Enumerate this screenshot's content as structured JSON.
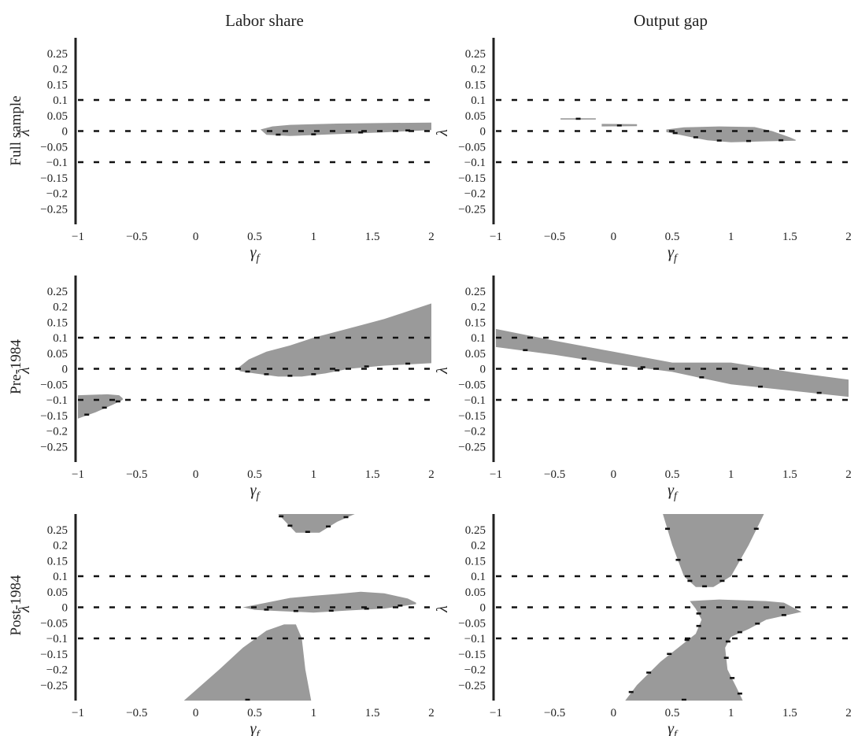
{
  "figure": {
    "column_titles": [
      "Labor share",
      "Output gap"
    ],
    "row_titles": [
      "Full sample",
      "Pre-1984",
      "Post-1984"
    ]
  },
  "colors": {
    "region": "#9a9a9a",
    "reference_lines": "#111111",
    "axes": "#222222"
  },
  "chart_data": [
    {
      "type": "area",
      "row": 0,
      "column": 0,
      "row_title": "Full sample",
      "column_title": "Labor share",
      "xlabel": "γf",
      "ylabel": "λ",
      "xlim": [
        -1,
        2
      ],
      "ylim": [
        -0.3,
        0.3
      ],
      "xticks": [
        "−1",
        "−0.5",
        "0",
        "0.5",
        "1",
        "1.5",
        "2"
      ],
      "yticks": [
        "0.25",
        "0.2",
        "0.15",
        "0.1",
        "0.05",
        "0",
        "−0.05",
        "−0.1",
        "−0.15",
        "−0.2",
        "−0.25"
      ],
      "reference_lines": [
        0.1,
        0,
        -0.1
      ],
      "grid": false,
      "legend": "none",
      "regions": [
        {
          "upper": [
            [
              0.55,
              0.005
            ],
            [
              0.65,
              0.015
            ],
            [
              0.8,
              0.02
            ],
            [
              1.2,
              0.024
            ],
            [
              1.6,
              0.026
            ],
            [
              2.0,
              0.027
            ]
          ],
          "lower": [
            [
              2.0,
              0.003
            ],
            [
              1.6,
              -0.004
            ],
            [
              1.2,
              -0.01
            ],
            [
              0.8,
              -0.016
            ],
            [
              0.6,
              -0.012
            ]
          ]
        }
      ]
    },
    {
      "type": "area",
      "row": 0,
      "column": 1,
      "row_title": "Full sample",
      "column_title": "Output gap",
      "xlabel": "γf",
      "ylabel": "λ",
      "xlim": [
        -1,
        2
      ],
      "ylim": [
        -0.3,
        0.3
      ],
      "xticks": [
        "−1",
        "−0.5",
        "0",
        "0.5",
        "1",
        "1.5",
        "2"
      ],
      "yticks": [
        "0.25",
        "0.2",
        "0.15",
        "0.1",
        "0.05",
        "0",
        "−0.05",
        "−0.1",
        "−0.15",
        "−0.2",
        "−0.25"
      ],
      "reference_lines": [
        0.1,
        0,
        -0.1
      ],
      "grid": false,
      "legend": "none",
      "regions": [
        {
          "upper": [
            [
              -0.45,
              0.041
            ],
            [
              -0.15,
              0.041
            ]
          ],
          "lower": [
            [
              -0.15,
              0.037
            ],
            [
              -0.45,
              0.037
            ]
          ]
        },
        {
          "upper": [
            [
              -0.1,
              0.023
            ],
            [
              0.2,
              0.022
            ]
          ],
          "lower": [
            [
              0.2,
              0.016
            ],
            [
              -0.1,
              0.015
            ]
          ]
        },
        {
          "upper": [
            [
              0.45,
              0.005
            ],
            [
              0.6,
              0.012
            ],
            [
              0.9,
              0.015
            ],
            [
              1.2,
              0.013
            ],
            [
              1.35,
              0.0
            ],
            [
              1.5,
              -0.02
            ],
            [
              1.55,
              -0.028
            ]
          ],
          "lower": [
            [
              1.55,
              -0.031
            ],
            [
              1.3,
              -0.033
            ],
            [
              1.0,
              -0.036
            ],
            [
              0.8,
              -0.03
            ],
            [
              0.6,
              -0.015
            ],
            [
              0.45,
              -0.003
            ]
          ]
        }
      ]
    },
    {
      "type": "area",
      "row": 1,
      "column": 0,
      "row_title": "Pre-1984",
      "column_title": "Labor share",
      "xlabel": "γf",
      "ylabel": "λ",
      "xlim": [
        -1,
        2
      ],
      "ylim": [
        -0.3,
        0.3
      ],
      "xticks": [
        "−1",
        "−0.5",
        "0",
        "0.5",
        "1",
        "1.5",
        "2"
      ],
      "yticks": [
        "0.25",
        "0.2",
        "0.15",
        "0.1",
        "0.05",
        "0",
        "−0.05",
        "−0.1",
        "−0.15",
        "−0.2",
        "−0.25"
      ],
      "reference_lines": [
        0.1,
        0,
        -0.1
      ],
      "grid": false,
      "legend": "none",
      "regions": [
        {
          "upper": [
            [
              -1.0,
              -0.085
            ],
            [
              -0.75,
              -0.082
            ],
            [
              -0.65,
              -0.085
            ],
            [
              -0.62,
              -0.095
            ]
          ],
          "lower": [
            [
              -0.62,
              -0.1
            ],
            [
              -0.7,
              -0.115
            ],
            [
              -0.85,
              -0.14
            ],
            [
              -1.0,
              -0.16
            ]
          ]
        },
        {
          "upper": [
            [
              0.35,
              0.0
            ],
            [
              0.45,
              0.03
            ],
            [
              0.6,
              0.055
            ],
            [
              0.8,
              0.075
            ],
            [
              1.0,
              0.1
            ],
            [
              1.2,
              0.12
            ],
            [
              1.4,
              0.14
            ],
            [
              1.6,
              0.16
            ],
            [
              1.8,
              0.185
            ],
            [
              2.0,
              0.21
            ]
          ],
          "lower": [
            [
              2.0,
              0.018
            ],
            [
              1.6,
              0.01
            ],
            [
              1.3,
              0.0
            ],
            [
              1.1,
              -0.015
            ],
            [
              0.9,
              -0.025
            ],
            [
              0.7,
              -0.025
            ],
            [
              0.5,
              -0.015
            ],
            [
              0.38,
              -0.008
            ]
          ]
        }
      ]
    },
    {
      "type": "area",
      "row": 1,
      "column": 1,
      "row_title": "Pre-1984",
      "column_title": "Output gap",
      "xlabel": "γf",
      "ylabel": "λ",
      "xlim": [
        -1,
        2
      ],
      "ylim": [
        -0.3,
        0.3
      ],
      "xticks": [
        "−1",
        "−0.5",
        "0",
        "0.5",
        "1",
        "1.5",
        "2"
      ],
      "yticks": [
        "0.25",
        "0.2",
        "0.15",
        "0.1",
        "0.05",
        "0",
        "−0.05",
        "−0.1",
        "−0.15",
        "−0.2",
        "−0.25"
      ],
      "reference_lines": [
        0.1,
        0,
        -0.1
      ],
      "grid": false,
      "legend": "none",
      "regions": [
        {
          "upper": [
            [
              -1.0,
              0.128
            ],
            [
              -0.5,
              0.09
            ],
            [
              0.0,
              0.055
            ],
            [
              0.5,
              0.02
            ],
            [
              1.0,
              0.02
            ],
            [
              1.5,
              -0.01
            ],
            [
              2.0,
              -0.035
            ]
          ],
          "lower": [
            [
              2.0,
              -0.09
            ],
            [
              1.5,
              -0.07
            ],
            [
              1.0,
              -0.05
            ],
            [
              0.5,
              -0.01
            ],
            [
              0.0,
              0.015
            ],
            [
              -0.5,
              0.045
            ],
            [
              -1.0,
              0.07
            ]
          ]
        }
      ]
    },
    {
      "type": "area",
      "row": 2,
      "column": 0,
      "row_title": "Post-1984",
      "column_title": "Labor share",
      "xlabel": "γf",
      "ylabel": "λ",
      "xlim": [
        -1,
        2
      ],
      "ylim": [
        -0.3,
        0.3
      ],
      "xticks": [
        "−1",
        "−0.5",
        "0",
        "0.5",
        "1",
        "1.5",
        "2"
      ],
      "yticks": [
        "0.25",
        "0.2",
        "0.15",
        "0.1",
        "0.05",
        "0",
        "−0.05",
        "−0.1",
        "−0.15",
        "−0.2",
        "−0.25"
      ],
      "reference_lines": [
        0.1,
        0,
        -0.1
      ],
      "grid": false,
      "legend": "none",
      "regions": [
        {
          "upper": [
            [
              0.7,
              0.3
            ],
            [
              1.35,
              0.3
            ]
          ],
          "lower": [
            [
              1.35,
              0.3
            ],
            [
              1.2,
              0.275
            ],
            [
              1.05,
              0.24
            ],
            [
              0.85,
              0.24
            ],
            [
              0.75,
              0.28
            ],
            [
              0.7,
              0.3
            ]
          ]
        },
        {
          "upper": [
            [
              0.4,
              0.0
            ],
            [
              0.6,
              0.015
            ],
            [
              0.8,
              0.03
            ],
            [
              1.0,
              0.037
            ],
            [
              1.2,
              0.043
            ],
            [
              1.4,
              0.05
            ],
            [
              1.6,
              0.045
            ],
            [
              1.8,
              0.028
            ],
            [
              1.87,
              0.015
            ]
          ],
          "lower": [
            [
              1.87,
              0.01
            ],
            [
              1.6,
              -0.004
            ],
            [
              1.3,
              -0.01
            ],
            [
              1.0,
              -0.017
            ],
            [
              0.7,
              -0.012
            ],
            [
              0.5,
              -0.008
            ]
          ]
        },
        {
          "upper": [
            [
              -0.1,
              -0.3
            ],
            [
              0.2,
              -0.2
            ],
            [
              0.4,
              -0.13
            ],
            [
              0.6,
              -0.075
            ],
            [
              0.75,
              -0.055
            ],
            [
              0.85,
              -0.055
            ],
            [
              0.9,
              -0.1
            ],
            [
              0.93,
              -0.2
            ],
            [
              0.98,
              -0.3
            ]
          ],
          "lower": [
            [
              0.98,
              -0.3
            ],
            [
              -0.1,
              -0.3
            ]
          ]
        }
      ]
    },
    {
      "type": "area",
      "row": 2,
      "column": 1,
      "row_title": "Post-1984",
      "column_title": "Output gap",
      "xlabel": "γf",
      "ylabel": "λ",
      "xlim": [
        -1,
        2
      ],
      "ylim": [
        -0.3,
        0.3
      ],
      "xticks": [
        "−1",
        "−0.5",
        "0",
        "0.5",
        "1",
        "1.5",
        "2"
      ],
      "yticks": [
        "0.25",
        "0.2",
        "0.15",
        "0.1",
        "0.05",
        "0",
        "−0.05",
        "−0.1",
        "−0.15",
        "−0.2",
        "−0.25"
      ],
      "reference_lines": [
        0.1,
        0,
        -0.1
      ],
      "grid": false,
      "legend": "none",
      "regions": [
        {
          "upper": [
            [
              0.42,
              0.3
            ],
            [
              1.28,
              0.3
            ]
          ],
          "lower": [
            [
              1.28,
              0.3
            ],
            [
              1.15,
              0.2
            ],
            [
              1.0,
              0.1
            ],
            [
              0.85,
              0.065
            ],
            [
              0.7,
              0.065
            ],
            [
              0.6,
              0.1
            ],
            [
              0.5,
              0.2
            ],
            [
              0.42,
              0.3
            ]
          ]
        },
        {
          "upper": [
            [
              0.65,
              0.02
            ],
            [
              0.9,
              0.025
            ],
            [
              1.3,
              0.02
            ],
            [
              1.45,
              0.015
            ],
            [
              1.6,
              -0.015
            ]
          ],
          "lower": [
            [
              1.6,
              -0.015
            ],
            [
              1.3,
              -0.04
            ],
            [
              1.15,
              -0.07
            ],
            [
              1.0,
              -0.095
            ],
            [
              0.95,
              -0.13
            ],
            [
              0.97,
              -0.2
            ],
            [
              1.05,
              -0.26
            ],
            [
              1.1,
              -0.3
            ],
            [
              0.1,
              -0.3
            ],
            [
              0.2,
              -0.25
            ],
            [
              0.4,
              -0.175
            ],
            [
              0.55,
              -0.13
            ],
            [
              0.7,
              -0.085
            ],
            [
              0.75,
              -0.04
            ],
            [
              0.7,
              -0.005
            ]
          ]
        }
      ]
    }
  ]
}
